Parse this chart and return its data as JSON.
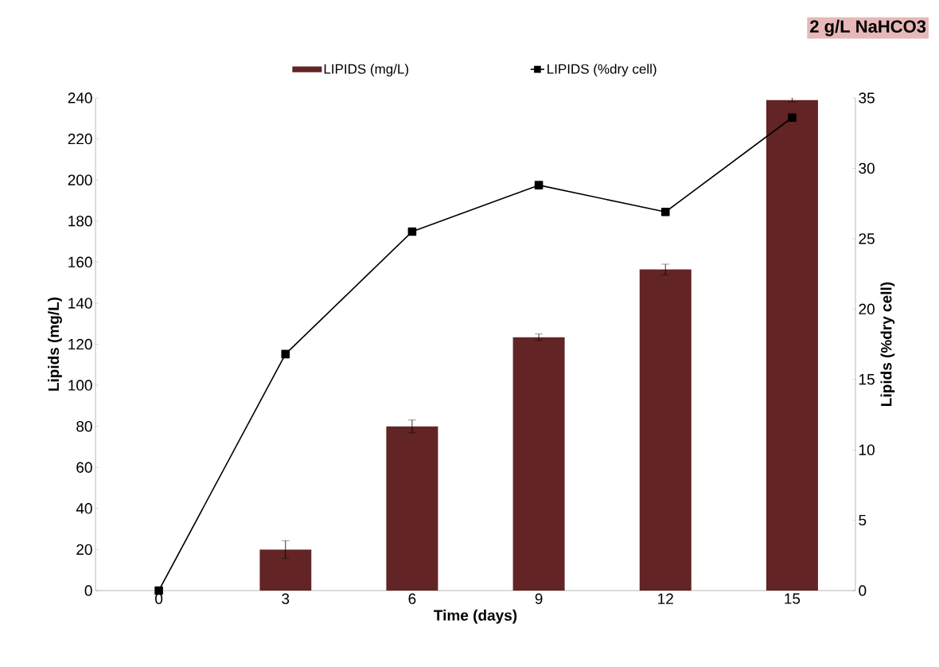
{
  "chart_data": {
    "type": "bar",
    "title": "2 g/L NaHCO3",
    "xlabel": "Time (days)",
    "ylabel": "Lipids (mg/L)",
    "y2label": "Lipids (%dry cell)",
    "categories": [
      "0",
      "3",
      "6",
      "9",
      "12",
      "15"
    ],
    "series": [
      {
        "name": "LIPIDS (mg/L)",
        "color": "#622424",
        "values": [
          null,
          20,
          80,
          123.4,
          156.4,
          239
        ],
        "errors": [
          null,
          4.3,
          3.1,
          1.6,
          2.6,
          1
        ]
      },
      {
        "name": "LIPIDS (%dry cell)",
        "type": "line",
        "axis": "y2",
        "color": "#000000",
        "marker": "square",
        "values": [
          0,
          16.8,
          25.5,
          28.8,
          26.9,
          33.6
        ]
      }
    ],
    "ylim": [
      0,
      240
    ],
    "yticks": [
      0,
      20,
      40,
      60,
      80,
      100,
      120,
      140,
      160,
      180,
      200,
      220,
      240
    ],
    "y2lim": [
      0,
      35
    ],
    "y2ticks": [
      0,
      5,
      10,
      15,
      20,
      25,
      30,
      35
    ],
    "legend": "top"
  }
}
